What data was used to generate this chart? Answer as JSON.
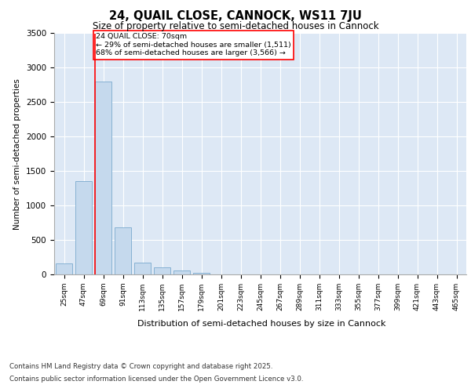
{
  "title": "24, QUAIL CLOSE, CANNOCK, WS11 7JU",
  "subtitle": "Size of property relative to semi-detached houses in Cannock",
  "xlabel": "Distribution of semi-detached houses by size in Cannock",
  "ylabel": "Number of semi-detached properties",
  "categories": [
    "25sqm",
    "47sqm",
    "69sqm",
    "91sqm",
    "113sqm",
    "135sqm",
    "157sqm",
    "179sqm",
    "201sqm",
    "223sqm",
    "245sqm",
    "267sqm",
    "289sqm",
    "311sqm",
    "333sqm",
    "355sqm",
    "377sqm",
    "399sqm",
    "421sqm",
    "443sqm",
    "465sqm"
  ],
  "values": [
    155,
    1350,
    2800,
    680,
    175,
    105,
    60,
    20,
    5,
    2,
    1,
    0,
    0,
    0,
    0,
    0,
    0,
    0,
    0,
    0,
    0
  ],
  "bar_color": "#c5d9ed",
  "bar_edge_color": "#7aaace",
  "background_color": "#dde8f5",
  "annotation_text_line1": "24 QUAIL CLOSE: 70sqm",
  "annotation_text_line2": "← 29% of semi-detached houses are smaller (1,511)",
  "annotation_text_line3": "68% of semi-detached houses are larger (3,566) →",
  "vline_index": 2,
  "ylim": [
    0,
    3500
  ],
  "yticks": [
    0,
    500,
    1000,
    1500,
    2000,
    2500,
    3000,
    3500
  ],
  "footer_line1": "Contains HM Land Registry data © Crown copyright and database right 2025.",
  "footer_line2": "Contains public sector information licensed under the Open Government Licence v3.0."
}
